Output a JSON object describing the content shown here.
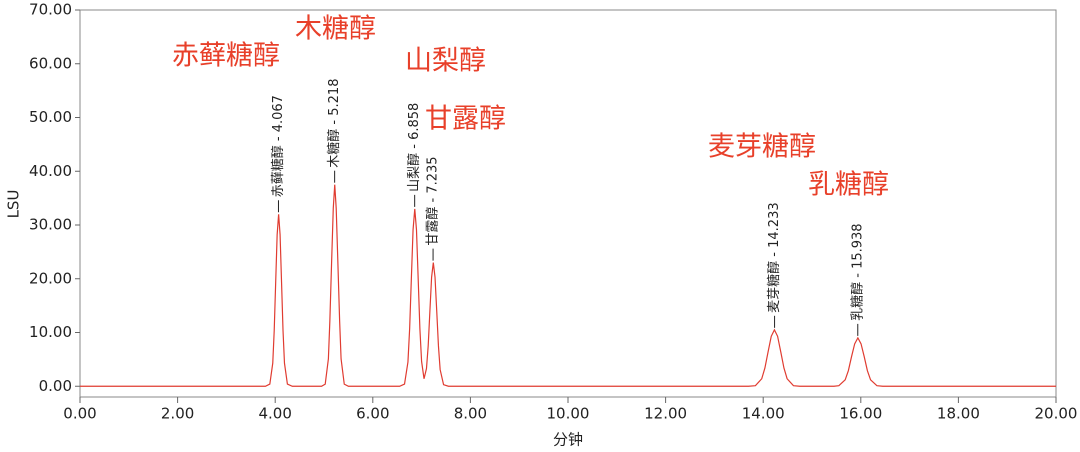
{
  "chart_data": {
    "type": "line",
    "xlabel": "分钟",
    "ylabel": "LSU",
    "color": "#e03c31",
    "x": [
      0,
      3.8,
      3.89,
      3.95,
      3.98,
      4.01,
      4.04,
      4.07,
      4.1,
      4.13,
      4.16,
      4.19,
      4.25,
      4.35,
      4.95,
      5.025,
      5.09,
      5.12,
      5.155,
      5.19,
      5.22,
      5.25,
      5.285,
      5.32,
      5.35,
      5.415,
      5.5,
      6.55,
      6.65,
      6.72,
      6.755,
      6.79,
      6.825,
      6.86,
      6.895,
      6.93,
      6.965,
      7.0,
      7.05,
      7.1,
      7.135,
      7.17,
      7.205,
      7.24,
      7.275,
      7.31,
      7.345,
      7.38,
      7.45,
      7.55,
      13.7,
      13.84,
      13.97,
      14.035,
      14.1,
      14.165,
      14.23,
      14.295,
      14.36,
      14.425,
      14.49,
      14.62,
      14.75,
      15.45,
      15.55,
      15.68,
      15.745,
      15.81,
      15.875,
      15.94,
      16.005,
      16.07,
      16.135,
      16.2,
      16.33,
      16.45,
      20
    ],
    "values": [
      0,
      0,
      0.4,
      4.3,
      10.4,
      19.4,
      28.2,
      32,
      28.2,
      19.4,
      10.4,
      4.3,
      0.4,
      0,
      0,
      0.4,
      5.1,
      12.2,
      22.8,
      33.1,
      37.5,
      33.1,
      22.8,
      12.2,
      5.1,
      0.4,
      0,
      0,
      0.4,
      4.5,
      10.7,
      20,
      29.1,
      33,
      29.1,
      20,
      10.7,
      4.6,
      1.4,
      3.3,
      7.5,
      14,
      20.3,
      23,
      20.3,
      14,
      7.5,
      3.1,
      0.3,
      0,
      0,
      0.1,
      1.4,
      3.4,
      6.4,
      9.3,
      10.5,
      9.3,
      6.4,
      3.4,
      1.4,
      0.1,
      0,
      0,
      0.1,
      1.2,
      2.9,
      5.5,
      7.9,
      9,
      7.9,
      5.5,
      2.9,
      1.2,
      0.1,
      0,
      0
    ],
    "peak_labels": [
      {
        "text": "赤藓糖醇 - 4.067",
        "x": 4.067,
        "y": 32
      },
      {
        "text": "木糖醇 - 5.218",
        "x": 5.218,
        "y": 37.5
      },
      {
        "text": "山梨醇 - 6.858",
        "x": 6.858,
        "y": 33
      },
      {
        "text": "甘露醇 - 7.235",
        "x": 7.235,
        "y": 23
      },
      {
        "text": "麦芽糖醇 - 14.233",
        "x": 14.233,
        "y": 10.5
      },
      {
        "text": "乳糖醇 - 15.938",
        "x": 15.938,
        "y": 9
      }
    ],
    "annotations": [
      "赤藓糖醇",
      "木糖醇",
      "山梨醇",
      "甘露醇",
      "麦芽糖醇",
      "乳糖醇"
    ],
    "xlim": [
      0,
      20
    ],
    "xticks": [
      {
        "value": 0,
        "label": "0.00"
      },
      {
        "value": 2,
        "label": "2.00"
      },
      {
        "value": 4,
        "label": "4.00"
      },
      {
        "value": 6,
        "label": "6.00"
      },
      {
        "value": 8,
        "label": "8.00"
      },
      {
        "value": 10,
        "label": "10.00"
      },
      {
        "value": 12,
        "label": "12.00"
      },
      {
        "value": 14,
        "label": "14.00"
      },
      {
        "value": 16,
        "label": "16.00"
      },
      {
        "value": 18,
        "label": "18.00"
      },
      {
        "value": 20,
        "label": "20.00"
      }
    ],
    "ylim": [
      -2,
      70
    ],
    "yticks": [
      {
        "value": 0,
        "label": "0.00"
      },
      {
        "value": 10,
        "label": "10.00"
      },
      {
        "value": 20,
        "label": "20.00"
      },
      {
        "value": 30,
        "label": "30.00"
      },
      {
        "value": 40,
        "label": "40.00"
      },
      {
        "value": 50,
        "label": "50.00"
      },
      {
        "value": 60,
        "label": "60.00"
      },
      {
        "value": 70,
        "label": "70.00"
      }
    ]
  }
}
